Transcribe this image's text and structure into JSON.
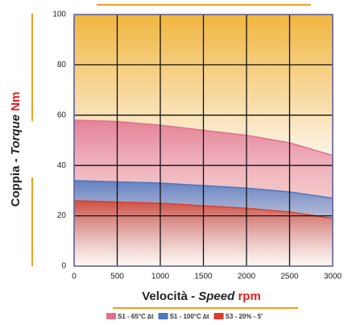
{
  "chart_data": {
    "type": "area_line",
    "x_label": [
      "Velocità -",
      "Speed",
      "rpm"
    ],
    "y_label": [
      "Coppia -",
      "Torque",
      "Nm"
    ],
    "x": [
      0,
      500,
      1000,
      1500,
      2000,
      2500,
      3000
    ],
    "series": [
      {
        "name": "S1 - 65°C ∆t",
        "color": "#e0708e",
        "values": [
          58,
          57.5,
          56,
          54,
          52,
          49,
          44
        ]
      },
      {
        "name": "S1 - 100°C ∆t",
        "color": "#4a76c0",
        "values": [
          34,
          33.5,
          33,
          32,
          31,
          29.5,
          27
        ]
      },
      {
        "name": "S3 - 20% - 5'",
        "color": "#d9402a",
        "values": [
          26,
          25.5,
          25,
          24,
          23,
          21.5,
          19
        ]
      }
    ],
    "xlim": [
      0,
      3000
    ],
    "xticks": [
      0,
      500,
      1000,
      1500,
      2000,
      2500,
      3000
    ],
    "ylim": [
      0,
      100
    ],
    "yticks": [
      0,
      20,
      40,
      60,
      80,
      100
    ],
    "grid": true
  }
}
